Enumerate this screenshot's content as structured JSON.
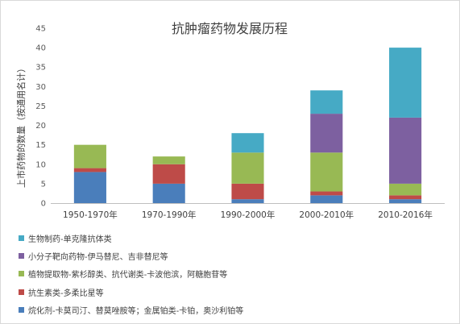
{
  "chart_data": {
    "type": "bar",
    "stacked": true,
    "title": "抗肿瘤药物发展历程",
    "ylabel": "上市药物的数量（按通用名计）",
    "xlabel": "",
    "ylim": [
      0,
      45
    ],
    "yticks": [
      0,
      5,
      10,
      15,
      20,
      25,
      30,
      35,
      40,
      45
    ],
    "grid": false,
    "legend_position": "bottom",
    "categories": [
      "1950-1970年",
      "1970-1990年",
      "1990-2000年",
      "2000-2010年",
      "2010-2016年"
    ],
    "series": [
      {
        "name": "烷化剂-卡莫司汀、替莫唑胺等；金属铂类-卡铂，奥沙利铂等",
        "color": "#4a7ebb",
        "values": [
          8,
          5,
          1,
          2,
          1
        ]
      },
      {
        "name": "抗生素类-多柔比星等",
        "color": "#be4b48",
        "values": [
          1,
          5,
          4,
          1,
          1
        ]
      },
      {
        "name": "植物提取物-紫杉醇类、抗代谢类-卡波他滨，阿糖胞苷等",
        "color": "#98b954",
        "values": [
          6,
          2,
          8,
          10,
          3
        ]
      },
      {
        "name": "小分子靶向药物-伊马替尼、吉非替尼等",
        "color": "#7d60a0",
        "values": [
          0,
          0,
          0,
          10,
          17
        ]
      },
      {
        "name": "生物制药-单克隆抗体类",
        "color": "#46aac5",
        "values": [
          0,
          0,
          5,
          6,
          18
        ]
      }
    ]
  }
}
